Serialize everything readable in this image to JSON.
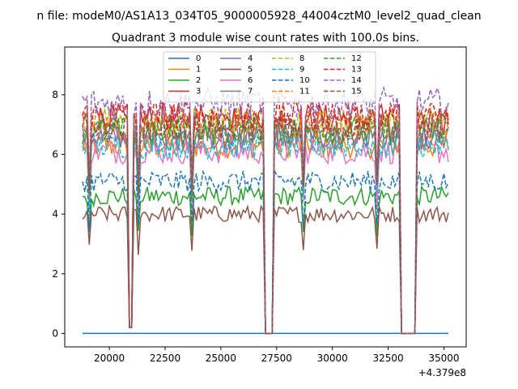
{
  "chart_data": {
    "type": "line",
    "suptitle": "n file: modeM0/AS1A13_034T05_9000005928_44004cztM0_level2_quad_clean",
    "title": "Quadrant 3 module wise count rates with 100.0s bins.",
    "xlabel": "",
    "ylabel": "",
    "x_offset_label": "+4.379e8",
    "xlim": [
      18000,
      36000
    ],
    "ylim": [
      -0.45,
      9.6
    ],
    "xticks": [
      20000,
      22500,
      25000,
      27500,
      30000,
      32500,
      35000
    ],
    "xtick_labels": [
      "20000",
      "22500",
      "25000",
      "27500",
      "30000",
      "32500",
      "35000"
    ],
    "yticks": [
      0,
      2,
      4,
      6,
      8
    ],
    "ytick_labels": [
      "0",
      "2",
      "4",
      "6",
      "8"
    ],
    "x_range": [
      18800,
      35200
    ],
    "bin_size": 100,
    "grid": false,
    "legend_position": "top-center",
    "legend_columns": 4,
    "gaps": [
      {
        "from": 20900,
        "to": 21000,
        "value": 0.2
      },
      {
        "from": 27000,
        "to": 27300,
        "value": 0
      },
      {
        "from": 33100,
        "to": 33700,
        "value": 0
      }
    ],
    "series": [
      {
        "name": "0",
        "color": "#1f77b4",
        "dash": "solid",
        "level": 0.0
      },
      {
        "name": "1",
        "color": "#ff7f0e",
        "dash": "solid",
        "level": 6.3
      },
      {
        "name": "2",
        "color": "#2ca02c",
        "dash": "solid",
        "level": 4.6
      },
      {
        "name": "3",
        "color": "#d62728",
        "dash": "solid",
        "level": 7.2
      },
      {
        "name": "4",
        "color": "#9467bd",
        "dash": "solid",
        "level": 6.6
      },
      {
        "name": "5",
        "color": "#8c564b",
        "dash": "solid",
        "level": 4.0
      },
      {
        "name": "6",
        "color": "#e377c2",
        "dash": "solid",
        "level": 6.1
      },
      {
        "name": "7",
        "color": "#7f7f7f",
        "dash": "solid",
        "level": 6.6
      },
      {
        "name": "8",
        "color": "#bcbd22",
        "dash": "dashed",
        "level": 7.1
      },
      {
        "name": "9",
        "color": "#17becf",
        "dash": "dashed",
        "level": 6.3
      },
      {
        "name": "10",
        "color": "#1f77b4",
        "dash": "dashed",
        "level": 5.1
      },
      {
        "name": "11",
        "color": "#ff7f0e",
        "dash": "dashed",
        "level": 7.0
      },
      {
        "name": "12",
        "color": "#2ca02c",
        "dash": "dashed",
        "level": 6.8
      },
      {
        "name": "13",
        "color": "#d62728",
        "dash": "dashed",
        "level": 7.3
      },
      {
        "name": "14",
        "color": "#9467bd",
        "dash": "dashed",
        "level": 7.7
      },
      {
        "name": "15",
        "color": "#8c564b",
        "dash": "dashed",
        "level": 6.9
      }
    ]
  }
}
